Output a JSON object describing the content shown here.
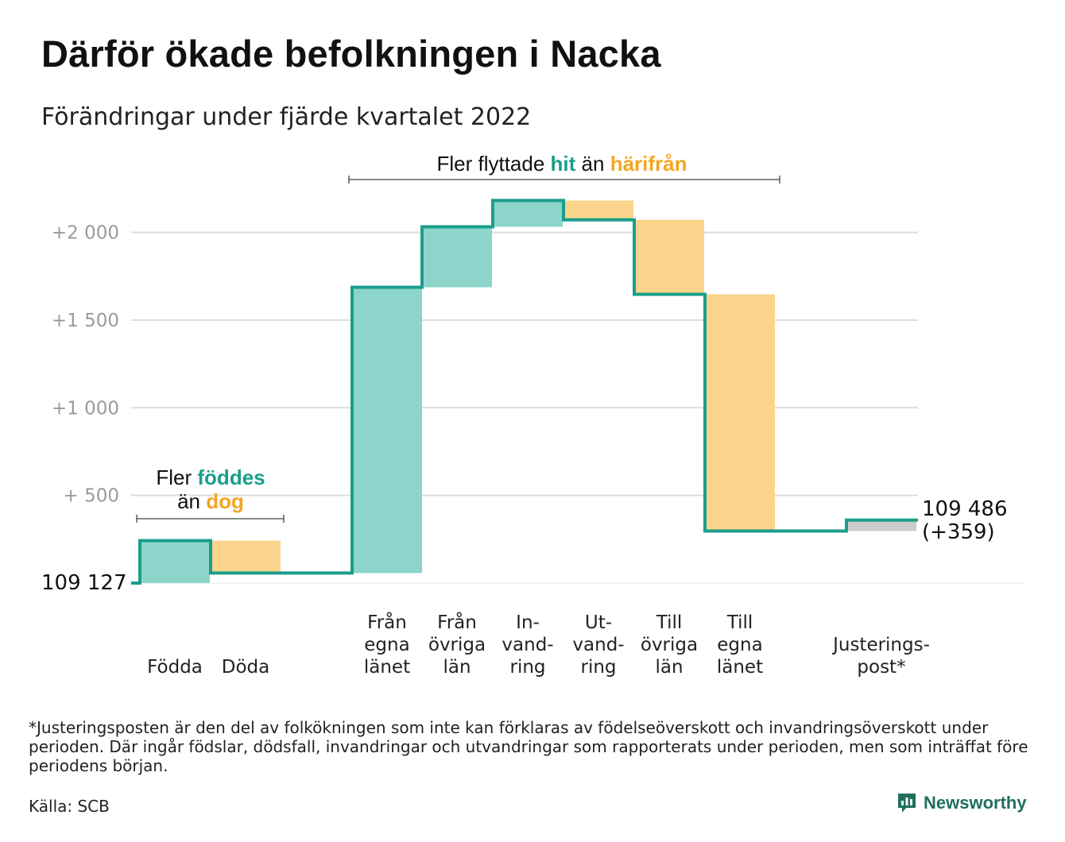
{
  "title": "Därför ökade befolkningen i Nacka",
  "subtitle": "Förändringar under fjärde kvartalet 2022",
  "colors": {
    "increase": "#8dd5cb",
    "decrease": "#fad48b",
    "adjustment": "#cccccc",
    "line": "#1a9e8c",
    "grid": "#dddddd",
    "in_text": "#1a9e8c",
    "out_text": "#f5a623"
  },
  "chart_data": {
    "type": "waterfall",
    "base_value": 109127,
    "y_ticks": [
      {
        "value": 500,
        "label": "+ 500"
      },
      {
        "value": 1000,
        "label": "+1 000"
      },
      {
        "value": 1500,
        "label": "+1 500"
      },
      {
        "value": 2000,
        "label": "+2 000"
      }
    ],
    "ylim": [
      0,
      2250
    ],
    "start_label": "109 127",
    "end_label": [
      "109 486",
      "(+359)"
    ],
    "steps": [
      {
        "label": [
          "Födda"
        ],
        "change": 242
      },
      {
        "label": [
          "Döda"
        ],
        "change": -185
      },
      {
        "label": [
          "Från",
          "egna",
          "länet"
        ],
        "change": 1630
      },
      {
        "label": [
          "Från",
          "övriga",
          "län"
        ],
        "change": 345
      },
      {
        "label": [
          "In-",
          "vand-",
          "ring"
        ],
        "change": 150
      },
      {
        "label": [
          "Ut-",
          "vand-",
          "ring"
        ],
        "change": -110
      },
      {
        "label": [
          "Till",
          "övriga",
          "län"
        ],
        "change": -425
      },
      {
        "label": [
          "Till",
          "egna",
          "länet"
        ],
        "change": -1350
      },
      {
        "label": [
          "Justerings-",
          "post*"
        ],
        "change": 62
      }
    ],
    "annotations": {
      "births": {
        "text_1": "Fler",
        "in_word": "föddes",
        "text_2": "än",
        "out_word": "dog"
      },
      "migration": {
        "text_1": "Fler flyttade",
        "in_word": "hit",
        "text_2": "än",
        "out_word": "härifrån"
      }
    }
  },
  "footnote": "*Justeringsposten är den del av folkökningen som inte kan förklaras av födelseöverskott och invandringsöverskott under perioden. Där ingår födslar, dödsfall, invandringar och utvandringar som rapporterats under perioden, men som inträffat före periodens början.",
  "source": "Källa: SCB",
  "brand": {
    "name": "Newsworthy",
    "icon": "newsworthy-logo-icon"
  }
}
